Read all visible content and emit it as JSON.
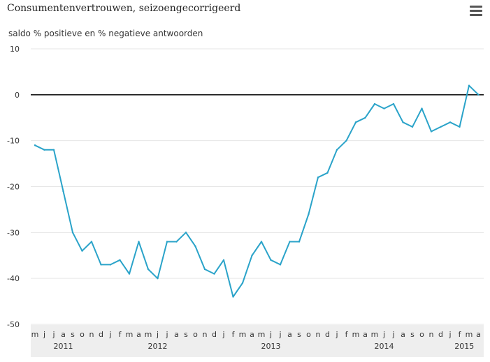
{
  "title": "Consumentenvertrouwen, seizoengecorrigeerd",
  "subtitle": "saldo % positieve en % negatieve antwoorden",
  "menu_icon": "hamburger-menu-icon",
  "colors": {
    "line": "#2aa3c9",
    "zero_line": "#000000",
    "grid": "#e6e6e6",
    "axis_band": "#eeeeee"
  },
  "chart_data": {
    "type": "line",
    "title": "Consumentenvertrouwen, seizoengecorrigeerd",
    "ylabel": "saldo % positieve en % negatieve antwoorden",
    "ylim": [
      -50,
      10
    ],
    "yticks": [
      10,
      0,
      -10,
      -20,
      -30,
      -40,
      -50
    ],
    "grid": true,
    "x": [
      "2011-05",
      "2011-06",
      "2011-07",
      "2011-08",
      "2011-09",
      "2011-10",
      "2011-11",
      "2011-12",
      "2012-01",
      "2012-02",
      "2012-03",
      "2012-04",
      "2012-05",
      "2012-06",
      "2012-07",
      "2012-08",
      "2012-09",
      "2012-10",
      "2012-11",
      "2012-12",
      "2013-01",
      "2013-02",
      "2013-03",
      "2013-04",
      "2013-05",
      "2013-06",
      "2013-07",
      "2013-08",
      "2013-09",
      "2013-10",
      "2013-11",
      "2013-12",
      "2014-01",
      "2014-02",
      "2014-03",
      "2014-04",
      "2014-05",
      "2014-06",
      "2014-07",
      "2014-08",
      "2014-09",
      "2014-10",
      "2014-11",
      "2014-12",
      "2015-01",
      "2015-02",
      "2015-03",
      "2015-04"
    ],
    "month_labels": [
      "m",
      "j",
      "j",
      "a",
      "s",
      "o",
      "n",
      "d",
      "j",
      "f",
      "m",
      "a",
      "m",
      "j",
      "j",
      "a",
      "s",
      "o",
      "n",
      "d",
      "j",
      "f",
      "m",
      "a",
      "m",
      "j",
      "j",
      "a",
      "s",
      "o",
      "n",
      "d",
      "j",
      "f",
      "m",
      "a",
      "m",
      "j",
      "j",
      "a",
      "s",
      "o",
      "n",
      "d",
      "j",
      "f",
      "m",
      "a"
    ],
    "year_labels": [
      {
        "label": "2011",
        "month_index": 3
      },
      {
        "label": "2012",
        "month_index": 13
      },
      {
        "label": "2013",
        "month_index": 25
      },
      {
        "label": "2014",
        "month_index": 37
      },
      {
        "label": "2015",
        "month_index": 45.5
      }
    ],
    "series": [
      {
        "values": [
          -11,
          -12,
          -12,
          -21,
          -30,
          -34,
          -32,
          -37,
          -37,
          -36,
          -39,
          -32,
          -38,
          -40,
          -32,
          -32,
          -30,
          -33,
          -38,
          -39,
          -36,
          -44,
          -41,
          -35,
          -32,
          -36,
          -37,
          -32,
          -32,
          -26,
          -18,
          -17,
          -12,
          -10,
          -6,
          -5,
          -2,
          -3,
          -2,
          -6,
          -7,
          -3,
          -8,
          -7,
          -6,
          -7,
          2,
          0
        ]
      }
    ]
  }
}
